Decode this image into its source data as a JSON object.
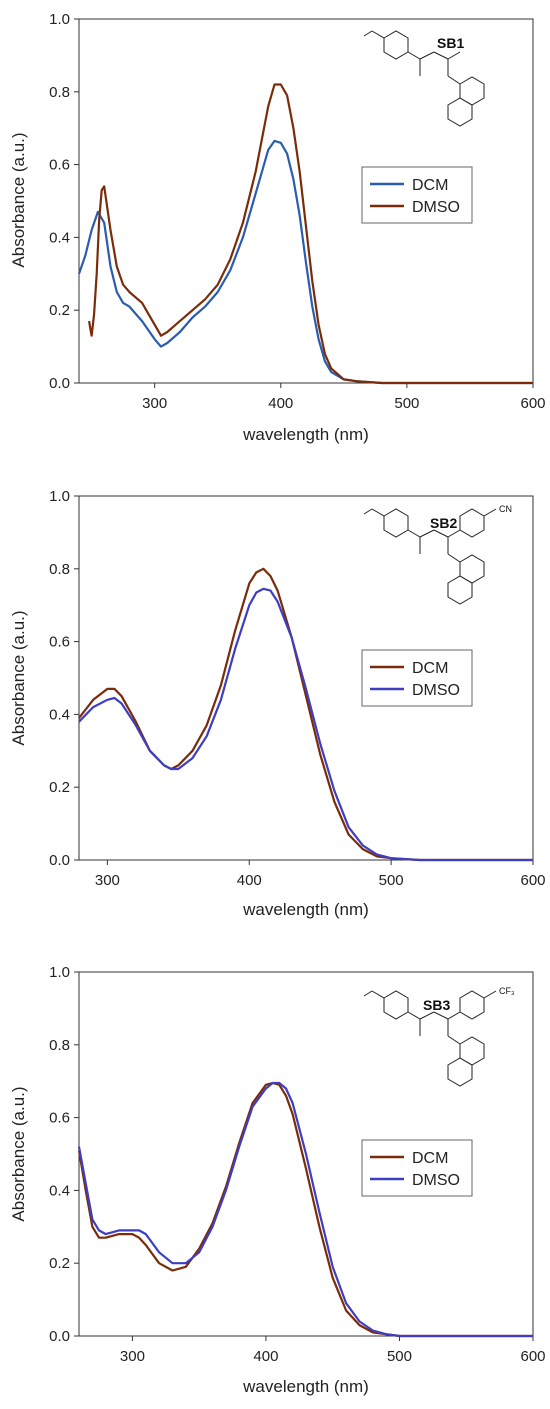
{
  "chart_data": [
    {
      "type": "line",
      "sample_label": "SB1",
      "xlabel": "wavelength (nm)",
      "ylabel": "Absorbance (a.u.)",
      "xlim": [
        240,
        600
      ],
      "ylim": [
        0,
        1.0
      ],
      "xticks": [
        "300",
        "400",
        "500",
        "600"
      ],
      "yticks": [
        "0.0",
        "0.2",
        "0.4",
        "0.6",
        "0.8",
        "1.0"
      ],
      "legend": "right-middle",
      "series": [
        {
          "name": "DCM",
          "color": "#2a5db0",
          "x": [
            240,
            245,
            250,
            255,
            260,
            265,
            270,
            275,
            280,
            290,
            300,
            305,
            310,
            320,
            330,
            340,
            350,
            360,
            370,
            380,
            390,
            395,
            400,
            405,
            410,
            415,
            420,
            425,
            430,
            435,
            440,
            450,
            460,
            480,
            500,
            600
          ],
          "y": [
            0.3,
            0.35,
            0.42,
            0.47,
            0.44,
            0.32,
            0.25,
            0.22,
            0.21,
            0.17,
            0.12,
            0.1,
            0.11,
            0.14,
            0.18,
            0.21,
            0.25,
            0.31,
            0.4,
            0.52,
            0.64,
            0.665,
            0.66,
            0.63,
            0.56,
            0.46,
            0.33,
            0.21,
            0.12,
            0.06,
            0.03,
            0.01,
            0.005,
            0.0,
            0.0,
            0.0
          ]
        },
        {
          "name": "DMSO",
          "color": "#7a2c0a",
          "x": [
            248,
            249,
            250,
            251,
            252,
            254,
            256,
            258,
            260,
            265,
            270,
            275,
            280,
            290,
            300,
            305,
            310,
            320,
            330,
            340,
            350,
            360,
            370,
            380,
            390,
            395,
            400,
            405,
            410,
            415,
            420,
            425,
            430,
            435,
            440,
            450,
            460,
            480,
            500,
            600
          ],
          "y": [
            0.17,
            0.15,
            0.13,
            0.16,
            0.19,
            0.3,
            0.45,
            0.53,
            0.54,
            0.42,
            0.32,
            0.27,
            0.25,
            0.22,
            0.16,
            0.13,
            0.14,
            0.17,
            0.2,
            0.23,
            0.27,
            0.34,
            0.44,
            0.58,
            0.76,
            0.82,
            0.82,
            0.79,
            0.7,
            0.58,
            0.43,
            0.28,
            0.16,
            0.08,
            0.04,
            0.01,
            0.005,
            0.0,
            0.0,
            0.0
          ]
        }
      ]
    },
    {
      "type": "line",
      "sample_label": "SB2",
      "xlabel": "wavelength (nm)",
      "ylabel": "Absorbance (a.u.)",
      "xlim": [
        280,
        600
      ],
      "ylim": [
        0,
        1.0
      ],
      "xticks": [
        "300",
        "400",
        "500",
        "600"
      ],
      "yticks": [
        "0.0",
        "0.2",
        "0.4",
        "0.6",
        "0.8",
        "1.0"
      ],
      "legend": "right-middle",
      "series": [
        {
          "name": "DCM",
          "color": "#7a2c0a",
          "x": [
            280,
            290,
            300,
            305,
            310,
            320,
            330,
            340,
            345,
            350,
            360,
            370,
            380,
            390,
            400,
            405,
            410,
            415,
            420,
            430,
            440,
            450,
            460,
            470,
            480,
            490,
            500,
            520,
            600
          ],
          "y": [
            0.39,
            0.44,
            0.47,
            0.47,
            0.45,
            0.38,
            0.3,
            0.26,
            0.25,
            0.26,
            0.3,
            0.37,
            0.48,
            0.63,
            0.76,
            0.79,
            0.8,
            0.78,
            0.74,
            0.61,
            0.45,
            0.29,
            0.16,
            0.07,
            0.03,
            0.01,
            0.005,
            0.0,
            0.0
          ]
        },
        {
          "name": "DMSO",
          "color": "#3d3ec0",
          "x": [
            280,
            290,
            300,
            305,
            310,
            320,
            330,
            340,
            345,
            350,
            360,
            370,
            380,
            390,
            400,
            405,
            410,
            415,
            420,
            430,
            440,
            450,
            460,
            470,
            480,
            490,
            500,
            520,
            600
          ],
          "y": [
            0.38,
            0.42,
            0.44,
            0.445,
            0.43,
            0.37,
            0.3,
            0.26,
            0.25,
            0.25,
            0.28,
            0.34,
            0.44,
            0.58,
            0.7,
            0.735,
            0.745,
            0.74,
            0.71,
            0.61,
            0.47,
            0.32,
            0.19,
            0.09,
            0.04,
            0.015,
            0.005,
            0.0,
            0.0
          ]
        }
      ]
    },
    {
      "type": "line",
      "sample_label": "SB3",
      "xlabel": "wavelength (nm)",
      "ylabel": "Absorbance (a.u.)",
      "xlim": [
        260,
        600
      ],
      "ylim": [
        0,
        1.0
      ],
      "xticks": [
        "300",
        "400",
        "500",
        "600"
      ],
      "yticks": [
        "0.0",
        "0.2",
        "0.4",
        "0.6",
        "0.8",
        "1.0"
      ],
      "legend": "right-middle",
      "series": [
        {
          "name": "DCM",
          "color": "#7a2c0a",
          "x": [
            260,
            265,
            270,
            275,
            280,
            290,
            300,
            305,
            310,
            320,
            330,
            340,
            350,
            360,
            370,
            380,
            390,
            400,
            405,
            410,
            415,
            420,
            430,
            440,
            450,
            460,
            470,
            480,
            490,
            500,
            600
          ],
          "y": [
            0.51,
            0.4,
            0.3,
            0.27,
            0.27,
            0.28,
            0.28,
            0.27,
            0.25,
            0.2,
            0.18,
            0.19,
            0.24,
            0.31,
            0.41,
            0.53,
            0.64,
            0.69,
            0.695,
            0.69,
            0.66,
            0.61,
            0.46,
            0.3,
            0.16,
            0.07,
            0.03,
            0.01,
            0.005,
            0.0,
            0.0
          ]
        },
        {
          "name": "DMSO",
          "color": "#3d3ec0",
          "x": [
            260,
            265,
            270,
            275,
            280,
            290,
            300,
            305,
            310,
            320,
            330,
            340,
            350,
            360,
            370,
            380,
            390,
            400,
            405,
            410,
            415,
            420,
            430,
            440,
            450,
            460,
            470,
            480,
            490,
            500,
            600
          ],
          "y": [
            0.52,
            0.42,
            0.32,
            0.29,
            0.28,
            0.29,
            0.29,
            0.29,
            0.28,
            0.23,
            0.2,
            0.2,
            0.23,
            0.3,
            0.4,
            0.52,
            0.63,
            0.68,
            0.695,
            0.695,
            0.68,
            0.64,
            0.5,
            0.34,
            0.19,
            0.09,
            0.04,
            0.015,
            0.005,
            0.0,
            0.0
          ]
        }
      ]
    }
  ]
}
